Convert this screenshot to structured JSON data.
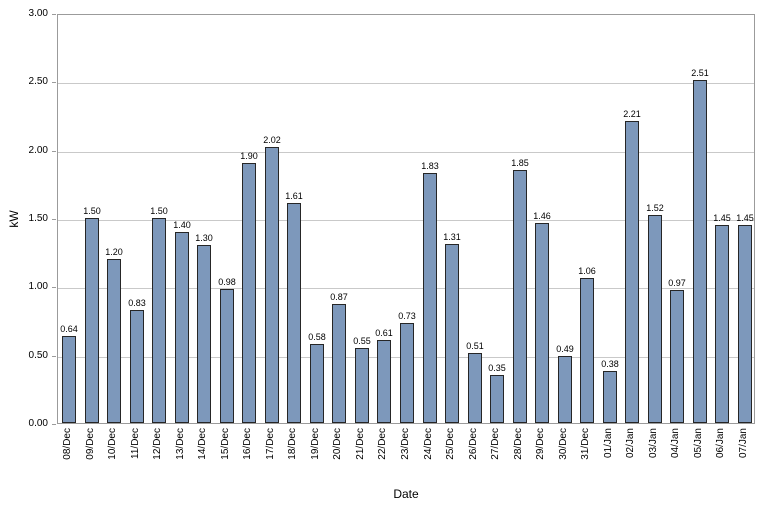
{
  "chart_data": {
    "type": "bar",
    "title": "",
    "xlabel": "Date",
    "ylabel": "kW",
    "ylim": [
      0,
      3.0
    ],
    "ytick_step": 0.5,
    "yticks": [
      0.0,
      0.5,
      1.0,
      1.5,
      2.0,
      2.5,
      3.0
    ],
    "ytick_labels": [
      "0.00",
      "0.50",
      "1.00",
      "1.50",
      "2.00",
      "2.50",
      "3.00"
    ],
    "grid": true,
    "legend": false,
    "bar_fill": "#7d98bb",
    "bar_border": "#262626",
    "categories": [
      "08/Dec",
      "09/Dec",
      "10/Dec",
      "11/Dec",
      "12/Dec",
      "13/Dec",
      "14/Dec",
      "15/Dec",
      "16/Dec",
      "17/Dec",
      "18/Dec",
      "19/Dec",
      "20/Dec",
      "21/Dec",
      "22/Dec",
      "23/Dec",
      "24/Dec",
      "25/Dec",
      "26/Dec",
      "27/Dec",
      "28/Dec",
      "29/Dec",
      "30/Dec",
      "31/Dec",
      "01/Jan",
      "02/Jan",
      "03/Jan",
      "04/Jan",
      "05/Jan",
      "06/Jan",
      "07/Jan"
    ],
    "values": [
      0.64,
      1.5,
      1.2,
      0.83,
      1.5,
      1.4,
      1.3,
      0.98,
      1.9,
      2.02,
      1.61,
      0.58,
      0.87,
      0.55,
      0.61,
      0.73,
      1.83,
      1.31,
      0.51,
      0.35,
      1.85,
      1.46,
      0.49,
      1.06,
      0.38,
      2.21,
      1.52,
      0.97,
      2.51,
      1.45,
      1.45
    ]
  }
}
